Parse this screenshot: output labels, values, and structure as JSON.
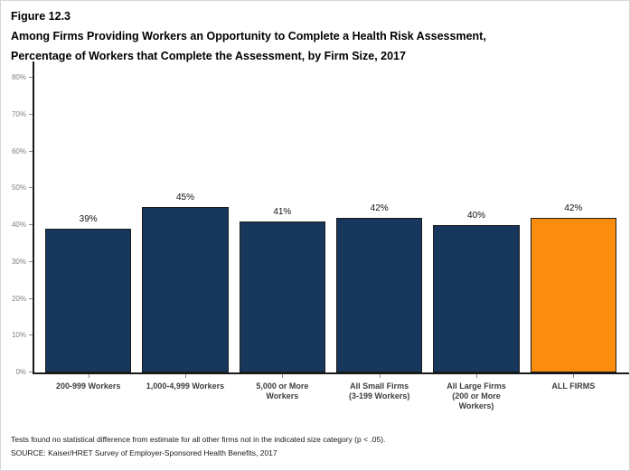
{
  "figure": {
    "label": "Figure 12.3",
    "title_line1": "Among Firms Providing Workers an Opportunity to Complete a Health Risk Assessment,",
    "title_line2": "Percentage of Workers that Complete the Assessment, by Firm Size, 2017"
  },
  "chart_data": {
    "type": "bar",
    "categories": [
      "200-999 Workers",
      "1,000-4,999 Workers",
      "5,000 or More\nWorkers",
      "All Small Firms\n(3-199 Workers)",
      "All Large Firms\n(200 or More\nWorkers)",
      "ALL FIRMS"
    ],
    "values": [
      39,
      45,
      41,
      42,
      40,
      42
    ],
    "value_labels": [
      "39%",
      "45%",
      "41%",
      "42%",
      "40%",
      "42%"
    ],
    "bar_colors": [
      "#17375C",
      "#17375C",
      "#17375C",
      "#17375C",
      "#17375C",
      "#FB8D0E"
    ],
    "bar_border_color": "#1b1b1b",
    "title": "Percentage of Workers that Complete the Assessment, by Firm Size, 2017",
    "xlabel": "",
    "ylabel": "",
    "ylim": [
      0,
      80
    ],
    "ytick_step": 10,
    "ytick_labels": [
      "0%",
      "10%",
      "20%",
      "30%",
      "40%",
      "50%",
      "60%",
      "70%",
      "80%"
    ],
    "grid": false,
    "legend": "none",
    "accent_color": "#FB8D0E",
    "base_color": "#17375C"
  },
  "footnotes": [
    "Tests found no statistical difference from estimate for all other firms not in the indicated size category (p < .05).",
    "SOURCE: Kaiser/HRET Survey of Employer-Sponsored Health Benefits, 2017"
  ]
}
